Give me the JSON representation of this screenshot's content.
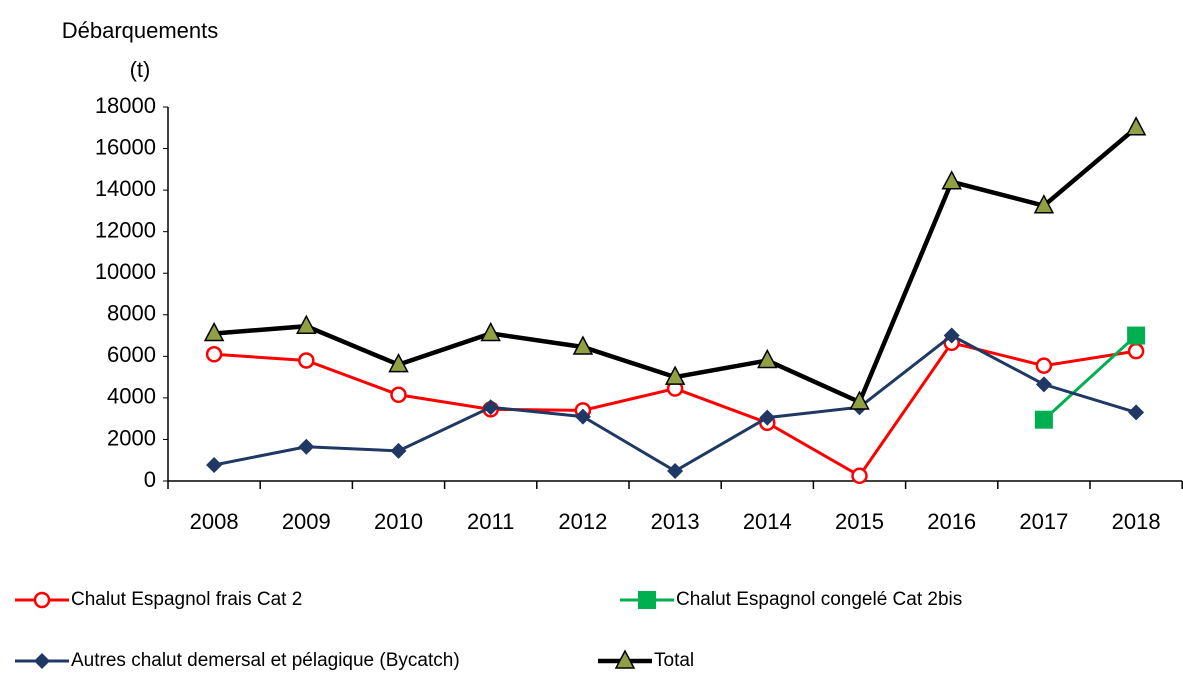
{
  "chart_data": {
    "type": "line",
    "y_label_lines": [
      "Débarquements",
      "(t)"
    ],
    "categories": [
      "2008",
      "2009",
      "2010",
      "2011",
      "2012",
      "2013",
      "2014",
      "2015",
      "2016",
      "2017",
      "2018"
    ],
    "series": [
      {
        "name": "Chalut Espagnol frais Cat 2",
        "color": "#ff0000",
        "marker": "circle",
        "values": [
          6100,
          5800,
          4150,
          3450,
          3400,
          4450,
          2800,
          250,
          6650,
          5550,
          6250
        ]
      },
      {
        "name": "Chalut Espagnol congelé Cat 2bis",
        "color": "#00b050",
        "marker": "square",
        "values": [
          null,
          null,
          null,
          null,
          null,
          null,
          null,
          null,
          null,
          2950,
          7000
        ]
      },
      {
        "name": "Autres chalut demersal et pélagique (Bycatch)",
        "color": "#1f3864",
        "marker": "diamond",
        "values": [
          770,
          1650,
          1450,
          3550,
          3100,
          480,
          3050,
          3550,
          7000,
          4650,
          3300
        ]
      },
      {
        "name": "Total",
        "color": "#000000",
        "marker": "triangle",
        "marker_fill": "#92a044",
        "values": [
          7100,
          7450,
          5600,
          7100,
          6450,
          5000,
          5800,
          3800,
          14400,
          13250,
          17000
        ]
      }
    ],
    "ylim": [
      0,
      18000
    ],
    "yticks": [
      0,
      2000,
      4000,
      6000,
      8000,
      10000,
      12000,
      14000,
      16000,
      18000
    ],
    "grid": false
  }
}
